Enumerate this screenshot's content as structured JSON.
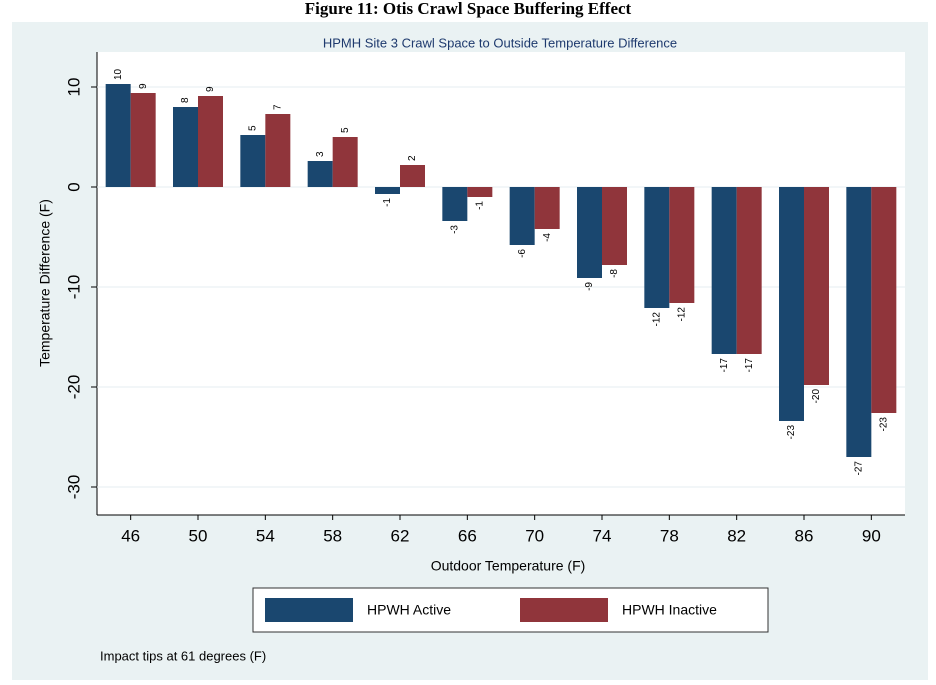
{
  "caption": "Figure 11: Otis Crawl Space Buffering Effect",
  "chart_data": {
    "type": "bar",
    "title": "HPMH Site 3 Crawl Space to Outside Temperature Difference",
    "x_label": "Outdoor Temperature (F)",
    "y_label": "Temperature Difference (F)",
    "categories": [
      "46",
      "50",
      "54",
      "58",
      "62",
      "66",
      "70",
      "74",
      "78",
      "82",
      "86",
      "90"
    ],
    "series": [
      {
        "name": "HPWH Active",
        "color": "#1a476f",
        "values": [
          10.3,
          8.0,
          5.2,
          2.6,
          -0.7,
          -3.4,
          -5.8,
          -9.1,
          -12.1,
          -16.7,
          -23.4,
          -27.0
        ],
        "value_labels": [
          "10",
          "8",
          "5",
          "3",
          "-1",
          "-3",
          "-6",
          "-9",
          "-12",
          "-17",
          "-23",
          "-27"
        ]
      },
      {
        "name": "HPWH Inactive",
        "color": "#90353b",
        "values": [
          9.4,
          9.1,
          7.3,
          5.0,
          2.2,
          -1.0,
          -4.2,
          -7.8,
          -11.6,
          -16.7,
          -19.8,
          -22.6
        ],
        "value_labels": [
          "9",
          "9",
          "7",
          "5",
          "2",
          "-1",
          "-4",
          "-8",
          "-12",
          "-17",
          "-20",
          "-23"
        ]
      }
    ],
    "ylim": [
      -32.8,
      13.5
    ],
    "yticks": [
      -30,
      -20,
      -10,
      0,
      10
    ],
    "grid": true,
    "note": "Impact tips at 61 degrees (F)"
  }
}
